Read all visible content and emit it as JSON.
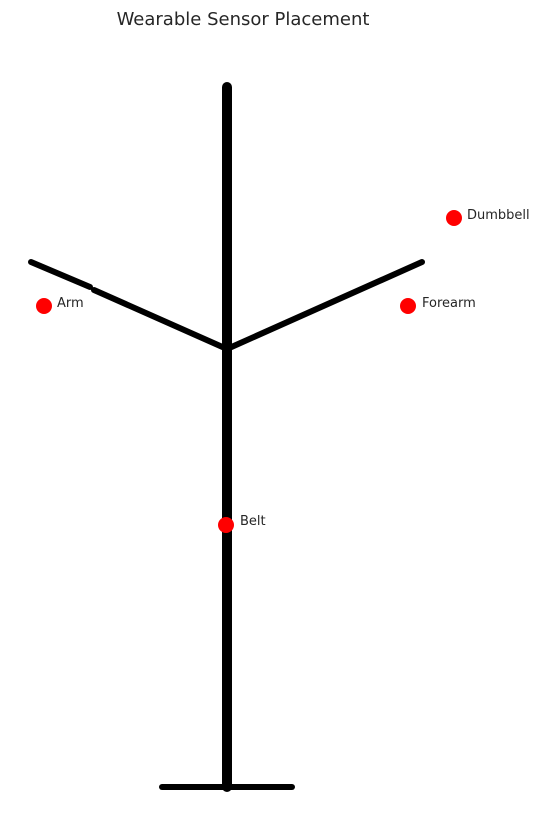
{
  "diagram": {
    "title": "Wearable Sensor Placement",
    "figure_color": "#000000",
    "sensor_color": "#ff0000",
    "sensors": [
      {
        "id": "arm",
        "label": "Arm"
      },
      {
        "id": "forearm",
        "label": "Forearm"
      },
      {
        "id": "dumbbell",
        "label": "Dumbbell"
      },
      {
        "id": "belt",
        "label": "Belt"
      }
    ]
  }
}
